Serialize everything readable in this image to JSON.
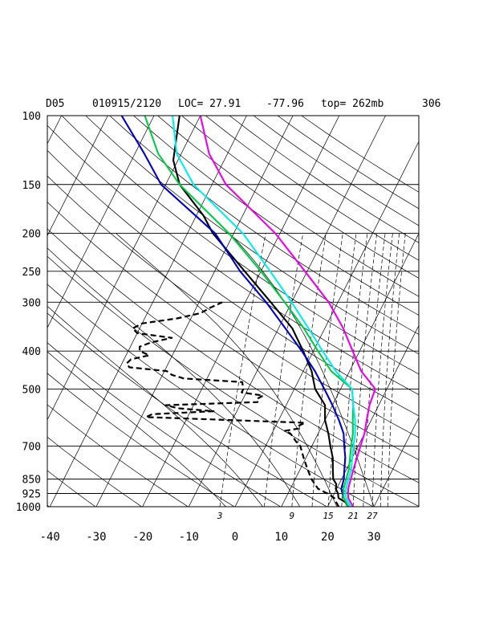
{
  "header": {
    "station": "D05",
    "datetime": "010915/2120",
    "loc": "LOC= 27.91",
    "lon": "-77.96",
    "top": "top= 262mb",
    "extra": "306"
  },
  "chart_data": {
    "type": "line",
    "title": "",
    "xlabel": "",
    "ylabel": "",
    "y_scale": "log",
    "xlim": [
      -40,
      40
    ],
    "ylim": [
      1000,
      100
    ],
    "grid": true,
    "pressure_ticks": [
      100,
      150,
      200,
      250,
      300,
      400,
      500,
      700,
      850,
      925,
      1000
    ],
    "temperature_ticks": [
      -40,
      -30,
      -20,
      -10,
      0,
      10,
      20,
      30
    ],
    "mixing_ratio_labels": [
      "3",
      "9",
      "15",
      "21",
      "27"
    ],
    "series": [
      {
        "style": "solid",
        "color": "#000000",
        "p": [
          1000,
          975,
          950,
          925,
          900,
          875,
          850,
          800,
          750,
          700,
          650,
          600,
          550,
          500,
          450,
          400,
          350,
          300,
          250,
          200,
          180,
          150,
          130,
          100
        ],
        "t": [
          24.4,
          23.4,
          21.4,
          20.8,
          19.8,
          19.4,
          18.2,
          17.0,
          15.8,
          14.0,
          12.2,
          10.0,
          8.4,
          4.5,
          1.8,
          -2.2,
          -7.0,
          -14.5,
          -23.5,
          -34.5,
          -38.5,
          -47.0,
          -51.0,
          -54.5
        ]
      },
      {
        "style": "dashed",
        "color": "#000000",
        "p": [
          1000,
          975,
          950,
          925,
          900,
          850,
          800,
          750,
          700,
          680,
          650,
          640,
          630,
          620,
          610,
          600,
          590,
          580,
          570,
          560,
          550,
          540,
          530,
          520,
          510,
          500,
          490,
          480,
          470,
          460,
          450,
          440,
          430,
          420,
          410,
          400,
          390,
          380,
          370,
          360,
          350,
          340,
          330,
          320,
          310,
          300
        ],
        "t": [
          22.4,
          21.4,
          20.5,
          18.5,
          16.0,
          13.5,
          11.5,
          9.5,
          7.5,
          6.0,
          4.0,
          2.5,
          5.5,
          5.0,
          6.0,
          -11.0,
          -29.0,
          -28.0,
          -15.0,
          -23.0,
          -26.0,
          -6.5,
          -7.0,
          -6.0,
          -11.0,
          -11.0,
          -11.5,
          -12.0,
          -25.0,
          -28.0,
          -29.5,
          -38.0,
          -39.0,
          -38.5,
          -35.0,
          -37.5,
          -38.0,
          -36.0,
          -32.0,
          -40.0,
          -41.5,
          -40.0,
          -33.0,
          -28.5,
          -27.0,
          -25.0
        ]
      },
      {
        "style": "solid",
        "color": "#0000cc",
        "p": [
          1000,
          950,
          900,
          850,
          800,
          750,
          700,
          650,
          600,
          550,
          500,
          450,
          400,
          350,
          300,
          250,
          200,
          150,
          125,
          100
        ],
        "t": [
          24.5,
          22.5,
          21.0,
          20.5,
          19.5,
          18.5,
          17.0,
          15.5,
          13.0,
          10.0,
          6.5,
          2.5,
          -2.5,
          -8.5,
          -15.5,
          -24.5,
          -34.0,
          -51.0,
          -58.0,
          -67.0
        ]
      },
      {
        "style": "solid",
        "color": "#00cc44",
        "p": [
          1000,
          950,
          900,
          850,
          800,
          750,
          700,
          650,
          600,
          550,
          500,
          450,
          400,
          350,
          300,
          250,
          200,
          150,
          125,
          100
        ],
        "t": [
          24.5,
          22.5,
          21.5,
          21.0,
          20.5,
          19.5,
          18.5,
          17.5,
          16.0,
          14.5,
          12.5,
          6.0,
          1.0,
          -4.5,
          -11.5,
          -20.0,
          -31.0,
          -47.0,
          -55.0,
          -62.0
        ]
      },
      {
        "style": "solid",
        "color": "#00eeee",
        "p": [
          1000,
          950,
          900,
          850,
          800,
          750,
          700,
          650,
          600,
          550,
          500,
          450,
          400,
          350,
          300,
          250,
          200,
          150,
          125,
          100
        ],
        "t": [
          25.0,
          23.0,
          22.0,
          21.5,
          21.0,
          20.0,
          19.0,
          18.0,
          16.5,
          14.5,
          12.5,
          7.0,
          2.0,
          -3.5,
          -10.0,
          -18.0,
          -28.0,
          -44.0,
          -51.0,
          -56.0
        ]
      },
      {
        "style": "solid",
        "color": "#ee00ee",
        "p": [
          1000,
          950,
          900,
          850,
          800,
          750,
          700,
          650,
          600,
          550,
          500,
          450,
          400,
          350,
          300,
          250,
          200,
          150,
          125,
          100
        ],
        "t": [
          25.5,
          23.5,
          22.5,
          22.0,
          21.5,
          21.0,
          20.5,
          20.0,
          19.0,
          18.0,
          17.5,
          12.5,
          8.5,
          4.0,
          -2.0,
          -10.5,
          -21.0,
          -37.0,
          -44.0,
          -50.0
        ]
      }
    ]
  }
}
